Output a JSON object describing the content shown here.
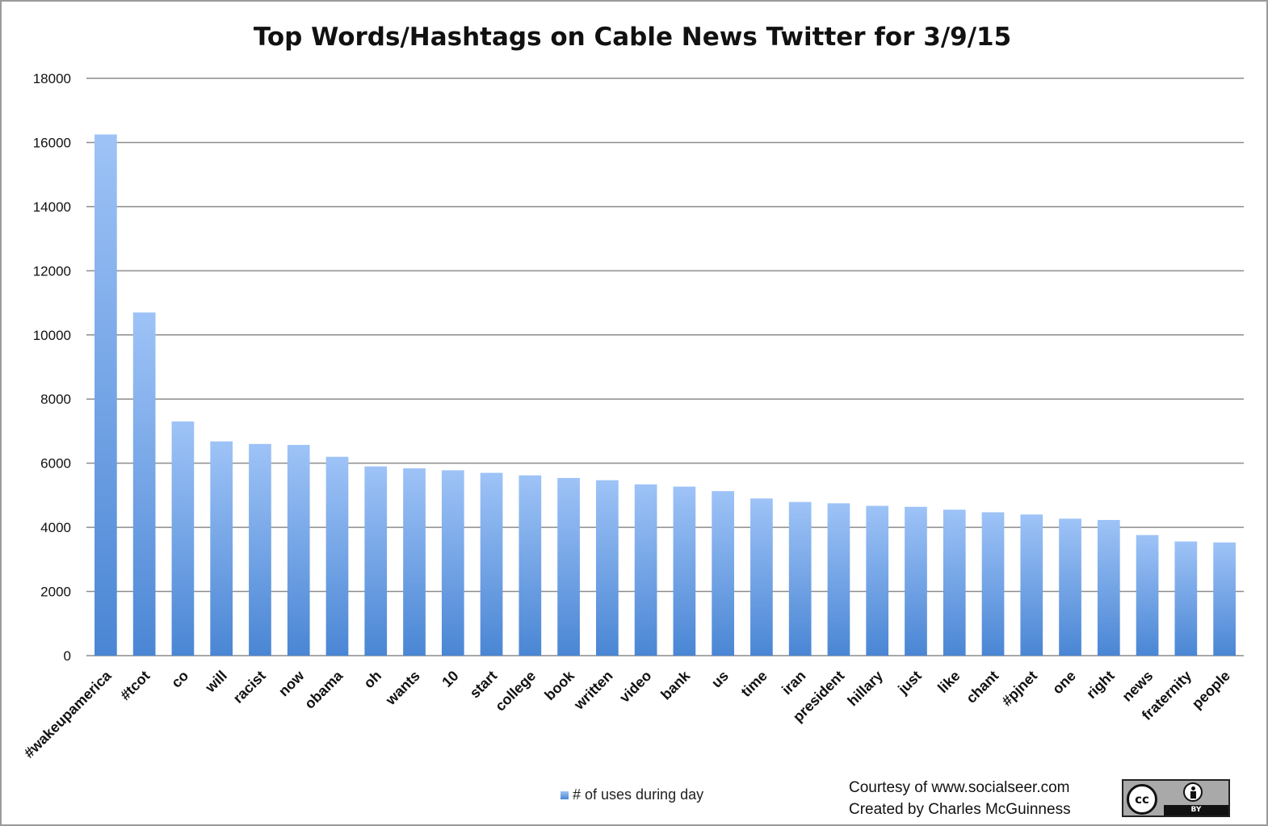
{
  "chart_data": {
    "type": "bar",
    "title": "Top Words/Hashtags on Cable News Twitter for 3/9/15",
    "xlabel": "",
    "ylabel": "",
    "ylim": [
      0,
      18000
    ],
    "yticks": [
      "0",
      "2000",
      "4000",
      "6000",
      "8000",
      "10000",
      "12000",
      "14000",
      "16000",
      "18000"
    ],
    "grid": true,
    "legend_position": "bottom",
    "categories": [
      "#wakeupamerica",
      "#tcot",
      "co",
      "will",
      "racist",
      "now",
      "obama",
      "oh",
      "wants",
      "10",
      "start",
      "college",
      "book",
      "written",
      "video",
      "bank",
      "us",
      "time",
      "iran",
      "president",
      "hillary",
      "just",
      "like",
      "chant",
      "#pjnet",
      "one",
      "right",
      "news",
      "fraternity",
      "people"
    ],
    "series": [
      {
        "name": "# of uses during day",
        "values": [
          16250,
          10700,
          7300,
          6680,
          6600,
          6570,
          6200,
          5900,
          5840,
          5780,
          5700,
          5620,
          5540,
          5470,
          5340,
          5270,
          5130,
          4900,
          4790,
          4750,
          4670,
          4640,
          4550,
          4470,
          4400,
          4270,
          4230,
          3760,
          3560,
          3530
        ]
      }
    ],
    "colors": {
      "bar_top": "#9ec3f7",
      "bar_bottom": "#4a86d4",
      "grid": "#8c8c8c"
    }
  },
  "credits": {
    "line1": "Courtesy of www.socialseer.com",
    "line2": "Created by Charles McGuinness"
  },
  "license_badge": {
    "left_text": "cc",
    "strip_text": "BY"
  }
}
